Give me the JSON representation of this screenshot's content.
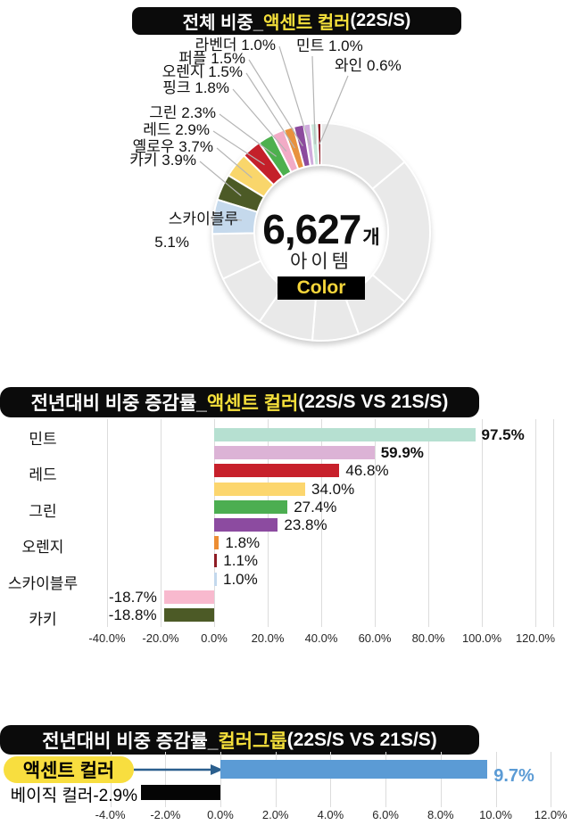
{
  "accent_color": "#f5e03b",
  "title_bg": "#0b0b0b",
  "chart_data": [
    {
      "type": "pie",
      "title": "전체 비중_액센트 컬러(22S/S)",
      "title_parts": {
        "prefix": "전체 비중_",
        "highlight": "액센트 컬러",
        "suffix": "(22S/S)"
      },
      "center": {
        "value": "6,627",
        "unit": "개",
        "label": "아이템",
        "badge": "Color"
      },
      "slices": [
        {
          "label": "와인",
          "pct": 0.6,
          "display": "와인 0.6%",
          "color": "#8c1823"
        },
        {
          "label": "민트",
          "pct": 1.0,
          "display": "민트 1.0%",
          "color": "#c8e7da"
        },
        {
          "label": "라벤더",
          "pct": 1.0,
          "display": "라벤더 1.0%",
          "color": "#cfabdc"
        },
        {
          "label": "퍼플",
          "pct": 1.5,
          "display": "퍼플 1.5%",
          "color": "#8c4a9e"
        },
        {
          "label": "오렌지",
          "pct": 1.5,
          "display": "오렌지 1.5%",
          "color": "#e8923e"
        },
        {
          "label": "핑크",
          "pct": 1.8,
          "display": "핑크 1.8%",
          "color": "#f2abc6"
        },
        {
          "label": "그린",
          "pct": 2.3,
          "display": "그린 2.3%",
          "color": "#4db04e"
        },
        {
          "label": "레드",
          "pct": 2.9,
          "display": "레드 2.9%",
          "color": "#c4202a"
        },
        {
          "label": "옐로우",
          "pct": 3.7,
          "display": "옐로우 3.7%",
          "color": "#f9d66b"
        },
        {
          "label": "카키",
          "pct": 3.9,
          "display": "카키 3.9%",
          "color": "#4c5a26"
        },
        {
          "label": "스카이블루",
          "pct": 5.1,
          "display": "스카이블루",
          "display2": "5.1%",
          "color": "#c5d9ec"
        }
      ],
      "others": {
        "pct": 74.7,
        "color": "#e9e9e9",
        "segments_pct": [
          13.9,
          22.2,
          8.3,
          6.9,
          8.3,
          8.3,
          6.8
        ]
      }
    },
    {
      "type": "bar",
      "orientation": "horizontal",
      "title": "전년대비 비중 증감률_액센트 컬러(22S/S VS 21S/S)",
      "title_parts": {
        "prefix": "전년대비 비중 증감률_",
        "highlight": "액센트 컬러",
        "suffix": "(22S/S VS 21S/S)"
      },
      "xlim": [
        -40,
        120
      ],
      "x_ticks": [
        "-40.0%",
        "-20.0%",
        "0.0%",
        "20.0%",
        "40.0%",
        "60.0%",
        "80.0%",
        "100.0%",
        "120.0%"
      ],
      "rows": [
        {
          "label": "민트",
          "value": 97.5,
          "display": "97.5%",
          "bold": true,
          "color": "#b6e0d1"
        },
        {
          "label": "",
          "value": 59.9,
          "display": "59.9%",
          "bold": true,
          "color": "#dcb3d6"
        },
        {
          "label": "레드",
          "value": 46.8,
          "display": "46.8%",
          "bold": false,
          "color": "#c7202b"
        },
        {
          "label": "",
          "value": 34.0,
          "display": "34.0%",
          "bold": false,
          "color": "#fcd66e"
        },
        {
          "label": "그린",
          "value": 27.4,
          "display": "27.4%",
          "bold": false,
          "color": "#4cae51"
        },
        {
          "label": "",
          "value": 23.8,
          "display": "23.8%",
          "bold": false,
          "color": "#8c4ba0"
        },
        {
          "label": "오렌지",
          "value": 1.8,
          "display": "1.8%",
          "bold": false,
          "color": "#ec8d33"
        },
        {
          "label": "",
          "value": 1.1,
          "display": "1.1%",
          "bold": false,
          "color": "#8e1b24"
        },
        {
          "label": "스카이블루",
          "value": 1.0,
          "display": "1.0%",
          "bold": false,
          "color": "#c3d8ed"
        },
        {
          "label": "",
          "value": -18.7,
          "display": "-18.7%",
          "bold": false,
          "color": "#f8b9ce"
        },
        {
          "label": "카키",
          "value": -18.8,
          "display": "-18.8%",
          "bold": false,
          "color": "#4c5a26"
        }
      ]
    },
    {
      "type": "bar",
      "orientation": "horizontal",
      "title": "전년대비 비중 증감률_컬러그룹(22S/S VS 21S/S)",
      "title_parts": {
        "prefix": "전년대비 비중 증감률_",
        "highlight": "컬러그룹",
        "suffix": "(22S/S VS 21S/S)"
      },
      "xlim": [
        -4,
        12
      ],
      "x_ticks": [
        "-4.0%",
        "-2.0%",
        "0.0%",
        "2.0%",
        "4.0%",
        "6.0%",
        "8.0%",
        "10.0%",
        "12.0%"
      ],
      "rows": [
        {
          "label": "액센트 컬러",
          "value": 9.7,
          "display": "9.7%",
          "color": "#5b9bd5",
          "highlighted": true
        },
        {
          "label": "베이직 컬러",
          "value": -2.9,
          "display": "-2.9%",
          "color": "#050505",
          "highlighted": false
        }
      ]
    }
  ]
}
